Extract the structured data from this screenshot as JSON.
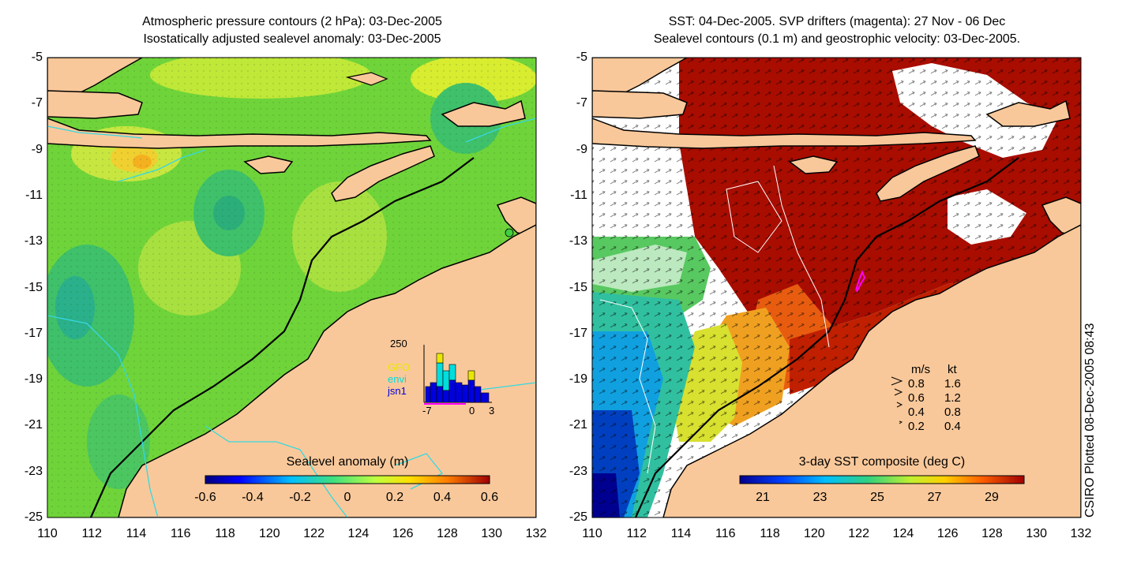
{
  "left_panel": {
    "title_line1": "Atmospheric pressure contours (2 hPa): 03-Dec-2005",
    "title_line2": "Isostatically adjusted sealevel anomaly: 03-Dec-2005",
    "colorbar_label": "Sealevel anomaly (m)",
    "colorbar_ticks": [
      "-0.6",
      "-0.4",
      "-0.2",
      "0",
      "0.2",
      "0.4",
      "0.6"
    ],
    "inset": {
      "ymax_label": "250",
      "legend": [
        "GFO",
        "envi",
        "jsn1"
      ],
      "legend_colors": [
        "#e8e800",
        "#00dddd",
        "#0000dd"
      ],
      "x_ticks": [
        "-7",
        "0",
        "3"
      ]
    }
  },
  "right_panel": {
    "title_line1": "SST: 04-Dec-2005. SVP drifters (magenta): 27 Nov - 06 Dec",
    "title_line2": "Sealevel contours (0.1 m) and geostrophic velocity: 03-Dec-2005.",
    "colorbar_label": "3-day SST composite (deg C)",
    "colorbar_ticks": [
      "21",
      "23",
      "25",
      "27",
      "29"
    ],
    "velocity_key": {
      "header_ms": "m/s",
      "header_kt": "kt",
      "rows": [
        {
          "ms": "0.8",
          "kt": "1.6"
        },
        {
          "ms": "0.6",
          "kt": "1.2"
        },
        {
          "ms": "0.4",
          "kt": "0.8"
        },
        {
          "ms": "0.2",
          "kt": "0.4"
        }
      ]
    }
  },
  "axes": {
    "y_ticks": [
      "-5",
      "-7",
      "-9",
      "-11",
      "-13",
      "-15",
      "-17",
      "-19",
      "-21",
      "-23",
      "-25"
    ],
    "x_ticks": [
      "110",
      "112",
      "114",
      "116",
      "118",
      "120",
      "122",
      "124",
      "126",
      "128",
      "130",
      "132"
    ]
  },
  "credit": "CSIRO Plotted 08-Dec-2005 08:43",
  "colors": {
    "land": "#f9c89a",
    "sla_base": "#6ed63a",
    "sst_warm": "#a80d00"
  }
}
